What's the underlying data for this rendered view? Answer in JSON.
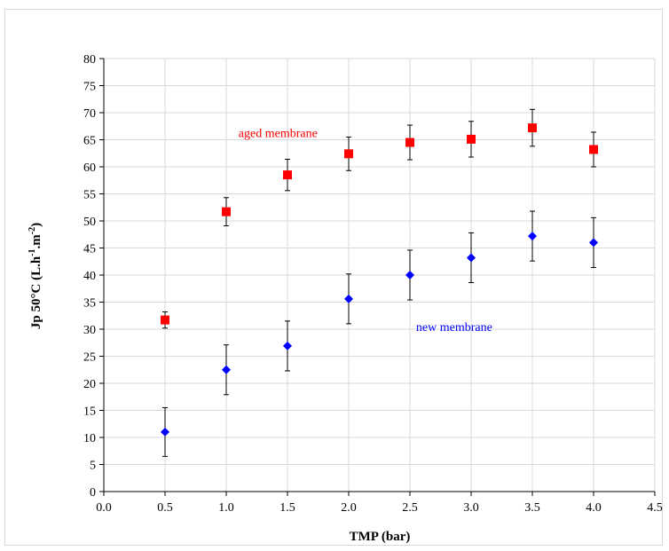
{
  "chart_data": {
    "type": "scatter",
    "xlabel": "TMP (bar)",
    "ylabel": {
      "prefix": "Jp 50°C  (L.h",
      "sup1": "-1",
      "mid": ".m",
      "sup2": "-2",
      "suffix": ")"
    },
    "xlim": [
      0,
      4.5
    ],
    "ylim": [
      0,
      80
    ],
    "x_ticks": [
      "0.0",
      "0.5",
      "1.0",
      "1.5",
      "2.0",
      "2.5",
      "3.0",
      "3.5",
      "4.0",
      "4.5"
    ],
    "y_ticks": [
      "0",
      "5",
      "10",
      "15",
      "20",
      "25",
      "30",
      "35",
      "40",
      "45",
      "50",
      "55",
      "60",
      "65",
      "70",
      "75",
      "80"
    ],
    "grid": true,
    "series": [
      {
        "name": "aged membrane",
        "marker": "square",
        "color": "#ff0000",
        "points": [
          {
            "x": 0.5,
            "y": 31.7,
            "err": 1.5
          },
          {
            "x": 1.0,
            "y": 51.7,
            "err": 2.6
          },
          {
            "x": 1.5,
            "y": 58.5,
            "err": 2.9
          },
          {
            "x": 2.0,
            "y": 62.4,
            "err": 3.1
          },
          {
            "x": 2.5,
            "y": 64.5,
            "err": 3.2
          },
          {
            "x": 3.0,
            "y": 65.1,
            "err": 3.3
          },
          {
            "x": 3.5,
            "y": 67.2,
            "err": 3.4
          },
          {
            "x": 4.0,
            "y": 63.2,
            "err": 3.2
          }
        ]
      },
      {
        "name": "new membrane",
        "marker": "diamond",
        "color": "#0000ff",
        "points": [
          {
            "x": 0.5,
            "y": 11.0,
            "err": 4.5
          },
          {
            "x": 1.0,
            "y": 22.5,
            "err": 4.6
          },
          {
            "x": 1.5,
            "y": 26.9,
            "err": 4.6
          },
          {
            "x": 2.0,
            "y": 35.6,
            "err": 4.6
          },
          {
            "x": 2.5,
            "y": 40.0,
            "err": 4.6
          },
          {
            "x": 3.0,
            "y": 43.2,
            "err": 4.6
          },
          {
            "x": 3.5,
            "y": 47.2,
            "err": 4.6
          },
          {
            "x": 4.0,
            "y": 46.0,
            "err": 4.6
          }
        ]
      }
    ],
    "annotations": [
      {
        "text": "aged membrane",
        "color": "#ff0000",
        "x": 1.1,
        "y": 65.5
      },
      {
        "text": "new membrane",
        "color": "#0000ff",
        "x": 2.55,
        "y": 29.7
      }
    ]
  }
}
